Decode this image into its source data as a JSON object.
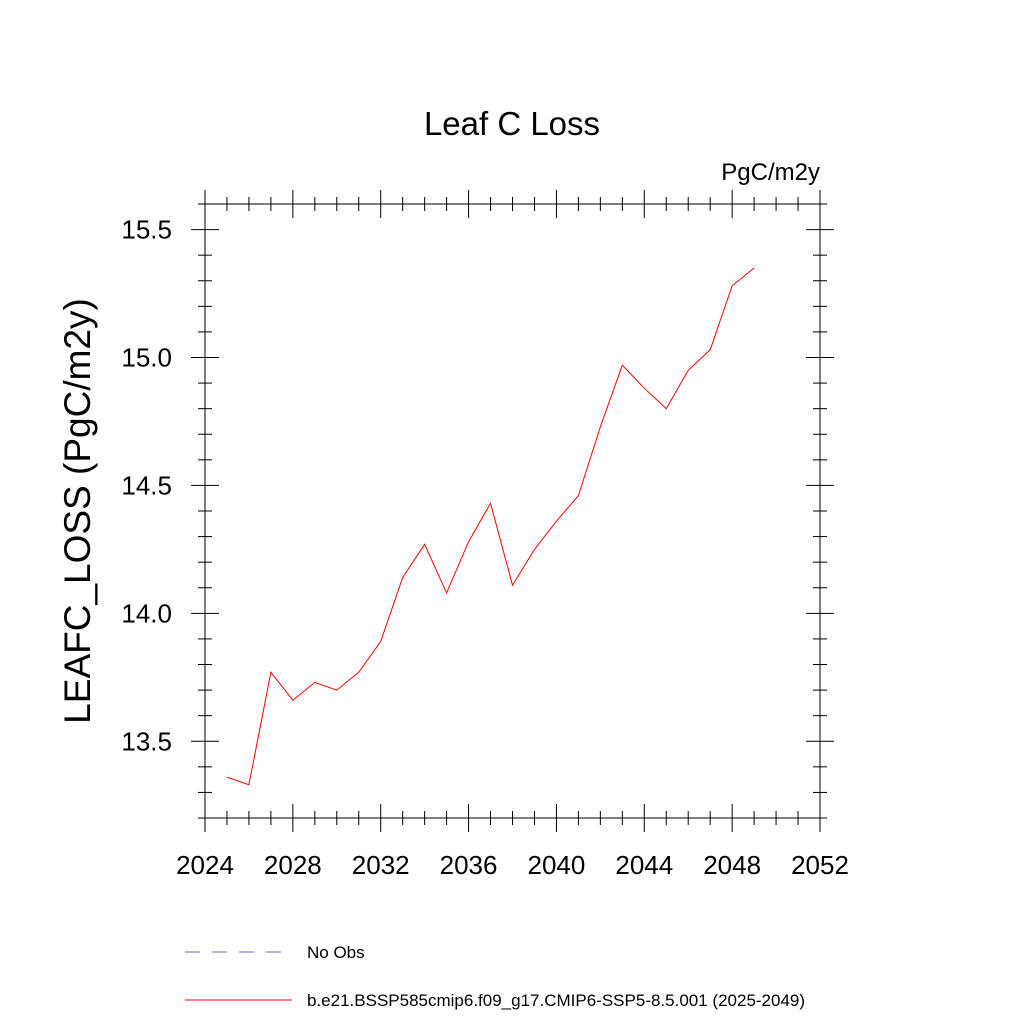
{
  "chart_data": {
    "type": "line",
    "title": "Leaf C Loss",
    "units_label": "PgC/m2y",
    "xlabel": "",
    "ylabel": "LEAFC_LOSS  (PgC/m2y)",
    "xlim": [
      2024,
      2052
    ],
    "ylim": [
      13.2,
      15.6
    ],
    "x_major_ticks": [
      2024,
      2028,
      2032,
      2036,
      2040,
      2044,
      2048,
      2052
    ],
    "x_tick_labels": [
      "2024",
      "2028",
      "2032",
      "2036",
      "2040",
      "2044",
      "2048",
      "2052"
    ],
    "x_minor_step": 1,
    "y_major_ticks": [
      13.5,
      14.0,
      14.5,
      15.0,
      15.5
    ],
    "y_tick_labels": [
      "13.5",
      "14.0",
      "14.5",
      "15.0",
      "15.5"
    ],
    "y_minor_step": 0.1,
    "grid": false,
    "legend_position": "bottom",
    "series": [
      {
        "name": "b.e21.BSSP585cmip6.f09_g17.CMIP6-SSP5-8.5.001 (2025-2049)",
        "color": "#ff0000",
        "style": "solid",
        "x": [
          2025,
          2026,
          2027,
          2028,
          2029,
          2030,
          2031,
          2032,
          2033,
          2034,
          2035,
          2036,
          2037,
          2038,
          2039,
          2040,
          2041,
          2042,
          2043,
          2044,
          2045,
          2046,
          2047,
          2048,
          2049
        ],
        "values": [
          13.36,
          13.33,
          13.77,
          13.66,
          13.73,
          13.7,
          13.77,
          13.89,
          14.14,
          14.27,
          14.08,
          14.28,
          14.43,
          14.11,
          14.25,
          14.36,
          14.46,
          14.73,
          14.97,
          14.88,
          14.8,
          14.95,
          15.03,
          15.28,
          15.35
        ]
      }
    ],
    "legend": [
      {
        "label": "No Obs",
        "color": "#6666cc",
        "style": "dashed"
      },
      {
        "label": "b.e21.BSSP585cmip6.f09_g17.CMIP6-SSP5-8.5.001 (2025-2049)",
        "color": "#ff0000",
        "style": "solid"
      }
    ]
  }
}
